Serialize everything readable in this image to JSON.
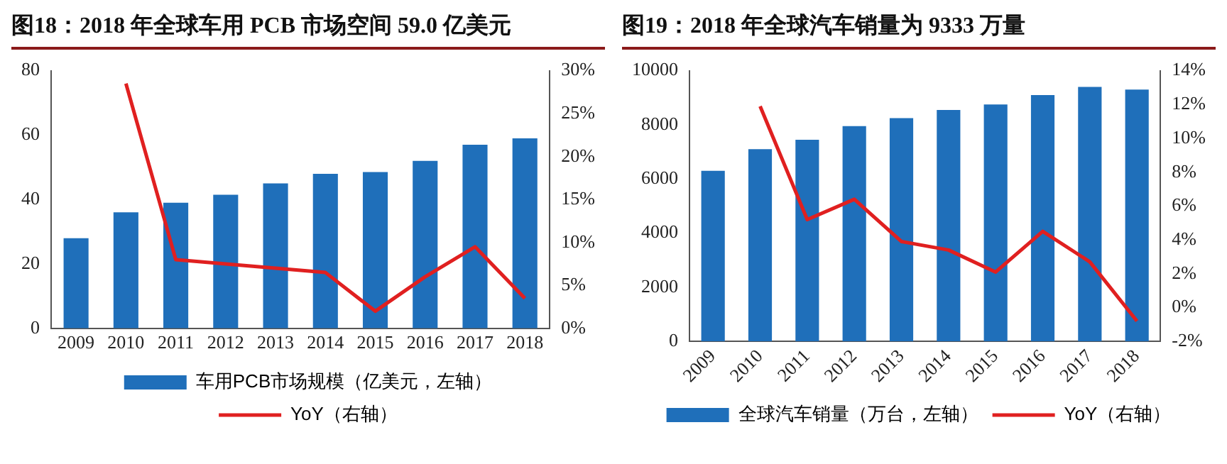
{
  "chart_data": [
    {
      "type": "bar",
      "title": "图18：2018 年全球车用 PCB 市场空间 59.0 亿美元",
      "categories": [
        "2009",
        "2010",
        "2011",
        "2012",
        "2013",
        "2014",
        "2015",
        "2016",
        "2017",
        "2018"
      ],
      "series": [
        {
          "name": "车用PCB市场规模（亿美元，左轴）",
          "color": "#1f6fba",
          "values": [
            28,
            36,
            39,
            41.5,
            45,
            48,
            48.5,
            52,
            57,
            59
          ]
        },
        {
          "name": "YoY（右轴）",
          "type": "line",
          "axis": "y2",
          "color": "#e02020",
          "values": [
            null,
            28.5,
            8,
            7.5,
            7,
            6.5,
            2,
            6,
            9.5,
            3.5
          ]
        }
      ],
      "ylim": [
        0,
        80
      ],
      "yticks": [
        0,
        20,
        40,
        60,
        80
      ],
      "y2lim": [
        0,
        30
      ],
      "y2ticks": [
        {
          "value": 0,
          "label": "0%"
        },
        {
          "value": 5,
          "label": "5%"
        },
        {
          "value": 10,
          "label": "10%"
        },
        {
          "value": 15,
          "label": "15%"
        },
        {
          "value": 20,
          "label": "20%"
        },
        {
          "value": 25,
          "label": "25%"
        },
        {
          "value": 30,
          "label": "30%"
        }
      ],
      "grid": false,
      "legend": "bottom",
      "marker": "none"
    },
    {
      "type": "bar",
      "title": "图19：2018 年全球汽车销量为 9333 万量",
      "categories": [
        "2009",
        "2010",
        "2011",
        "2012",
        "2013",
        "2014",
        "2015",
        "2016",
        "2017",
        "2018"
      ],
      "series": [
        {
          "name": "全球汽车销量（万台，左轴）",
          "color": "#1f6fba",
          "values": [
            6300,
            7100,
            7450,
            7950,
            8250,
            8550,
            8750,
            9100,
            9400,
            9300
          ]
        },
        {
          "name": "YoY（右轴）",
          "type": "line",
          "axis": "y2",
          "color": "#e02020",
          "values": [
            null,
            11.9,
            5.2,
            6.4,
            3.9,
            3.4,
            2.1,
            4.5,
            2.7,
            -0.8
          ]
        }
      ],
      "ylim": [
        0,
        10000
      ],
      "yticks": [
        0,
        2000,
        4000,
        6000,
        8000,
        10000
      ],
      "y2lim": [
        -2,
        14
      ],
      "y2ticks": [
        {
          "value": -2,
          "label": "-2%"
        },
        {
          "value": 0,
          "label": "0%"
        },
        {
          "value": 2,
          "label": "2%"
        },
        {
          "value": 4,
          "label": "4%"
        },
        {
          "value": 6,
          "label": "6%"
        },
        {
          "value": 8,
          "label": "8%"
        },
        {
          "value": 10,
          "label": "10%"
        },
        {
          "value": 12,
          "label": "12%"
        },
        {
          "value": 14,
          "label": "14%"
        }
      ],
      "grid": false,
      "legend": "bottom",
      "marker": "none"
    }
  ]
}
